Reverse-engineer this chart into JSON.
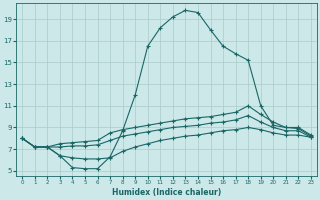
{
  "xlabel": "Humidex (Indice chaleur)",
  "ylabel": "",
  "bg_color": "#cce8e8",
  "grid_color": "#aacccc",
  "line_color": "#1a6666",
  "xlim": [
    -0.5,
    23.5
  ],
  "ylim": [
    4.5,
    20.5
  ],
  "xticks": [
    0,
    1,
    2,
    3,
    4,
    5,
    6,
    7,
    8,
    9,
    10,
    11,
    12,
    13,
    14,
    15,
    16,
    17,
    18,
    19,
    20,
    21,
    22,
    23
  ],
  "yticks": [
    5,
    7,
    9,
    11,
    13,
    15,
    17,
    19
  ],
  "line1_x": [
    0,
    1,
    2,
    3,
    4,
    5,
    6,
    7,
    8,
    9,
    10,
    11,
    12,
    13,
    14,
    15,
    16,
    17,
    18,
    19,
    20,
    21,
    22,
    23
  ],
  "line1_y": [
    8.0,
    7.2,
    7.2,
    6.4,
    5.3,
    5.2,
    5.2,
    6.3,
    8.7,
    12.0,
    16.5,
    18.2,
    19.2,
    19.8,
    19.6,
    18.0,
    16.5,
    15.8,
    15.2,
    11.0,
    9.2,
    9.0,
    8.9,
    8.2
  ],
  "line2_x": [
    0,
    1,
    2,
    3,
    4,
    5,
    6,
    7,
    8,
    9,
    10,
    11,
    12,
    13,
    14,
    15,
    16,
    17,
    18,
    19,
    20,
    21,
    22,
    23
  ],
  "line2_y": [
    8.0,
    7.2,
    7.2,
    7.5,
    7.6,
    7.7,
    7.8,
    8.5,
    8.8,
    9.0,
    9.2,
    9.4,
    9.6,
    9.8,
    9.9,
    10.0,
    10.2,
    10.4,
    11.0,
    10.2,
    9.5,
    9.0,
    9.0,
    8.3
  ],
  "line3_x": [
    0,
    1,
    2,
    3,
    4,
    5,
    6,
    7,
    8,
    9,
    10,
    11,
    12,
    13,
    14,
    15,
    16,
    17,
    18,
    19,
    20,
    21,
    22,
    23
  ],
  "line3_y": [
    8.0,
    7.2,
    7.2,
    7.2,
    7.3,
    7.3,
    7.4,
    7.8,
    8.2,
    8.4,
    8.6,
    8.8,
    9.0,
    9.1,
    9.2,
    9.4,
    9.5,
    9.7,
    10.1,
    9.5,
    9.0,
    8.7,
    8.7,
    8.1
  ],
  "line4_x": [
    0,
    1,
    2,
    3,
    4,
    5,
    6,
    7,
    8,
    9,
    10,
    11,
    12,
    13,
    14,
    15,
    16,
    17,
    18,
    19,
    20,
    21,
    22,
    23
  ],
  "line4_y": [
    8.0,
    7.2,
    7.2,
    6.4,
    6.2,
    6.1,
    6.1,
    6.2,
    6.8,
    7.2,
    7.5,
    7.8,
    8.0,
    8.2,
    8.3,
    8.5,
    8.7,
    8.8,
    9.0,
    8.8,
    8.5,
    8.3,
    8.3,
    8.1
  ]
}
